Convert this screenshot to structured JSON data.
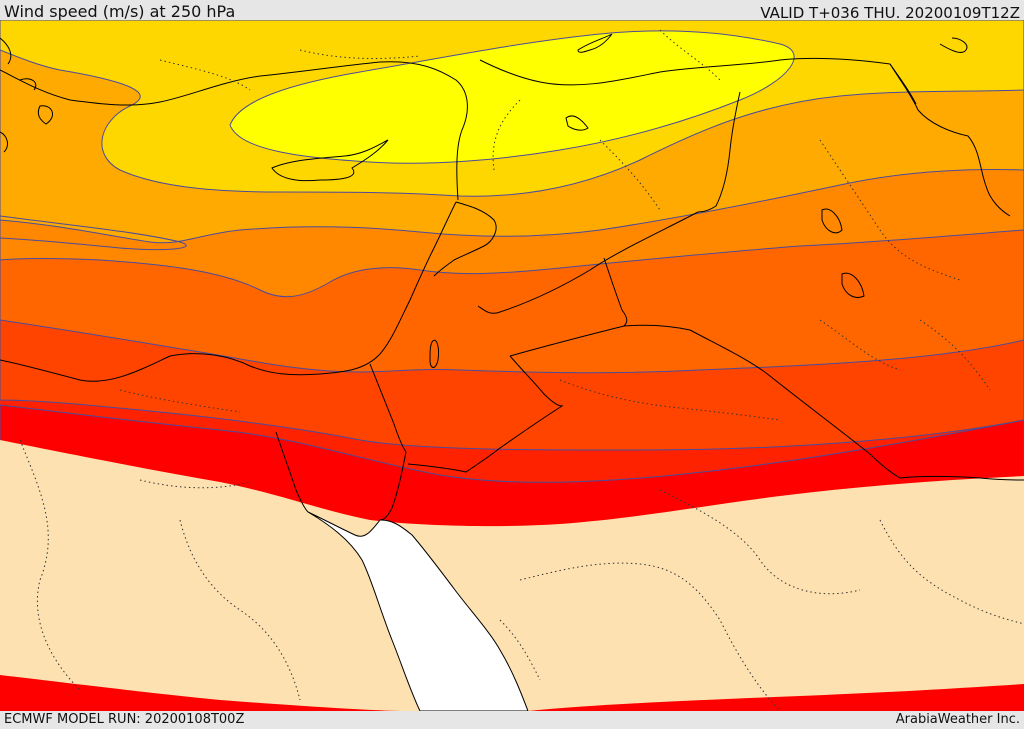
{
  "header": {
    "title": "Wind speed (m/s) at 250 hPa",
    "valid": "VALID T+036 THU. 20200109T12Z"
  },
  "footer": {
    "model_run": "ECMWF MODEL RUN: 20200108T00Z",
    "credit": "ArabiaWeather Inc."
  },
  "map": {
    "fill_colors": {
      "band_1": "#ffff00",
      "band_2": "#ffd700",
      "band_3": "#ffaa00",
      "band_4": "#ff8800",
      "band_5": "#ff6600",
      "band_6": "#ff4400",
      "band_7": "#ff2200",
      "band_8": "#ff0000",
      "calm": "#fde1b0",
      "sea": "#ffffff"
    },
    "contour_color": "#4b4b9b",
    "coastline_color": "#000000"
  }
}
